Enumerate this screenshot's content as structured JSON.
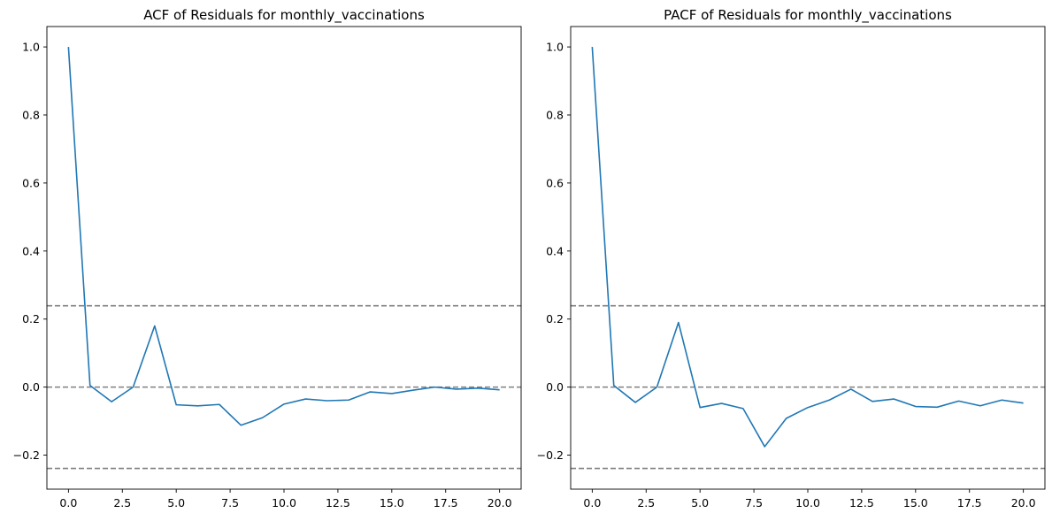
{
  "chart_data": [
    {
      "type": "line",
      "title": "ACF of Residuals for monthly_vaccinations",
      "xlabel": "",
      "ylabel": "",
      "xlim": [
        -1.0,
        21.0
      ],
      "ylim": [
        -0.3,
        1.06
      ],
      "xticks": [
        0.0,
        2.5,
        5.0,
        7.5,
        10.0,
        12.5,
        15.0,
        17.5,
        20.0
      ],
      "xtick_labels": [
        "0.0",
        "2.5",
        "5.0",
        "7.5",
        "10.0",
        "12.5",
        "15.0",
        "17.5",
        "20.0"
      ],
      "yticks": [
        -0.2,
        0.0,
        0.2,
        0.4,
        0.6,
        0.8,
        1.0
      ],
      "ytick_labels": [
        "−0.2",
        "0.0",
        "0.2",
        "0.4",
        "0.6",
        "0.8",
        "1.0"
      ],
      "grid": false,
      "x": [
        0,
        1,
        2,
        3,
        4,
        5,
        6,
        7,
        8,
        9,
        10,
        11,
        12,
        13,
        14,
        15,
        16,
        17,
        18,
        19,
        20
      ],
      "series": [
        {
          "color": "#1f77b4",
          "values": [
            1.0,
            0.005,
            -0.043,
            0.0,
            0.18,
            -0.052,
            -0.055,
            -0.051,
            -0.112,
            -0.09,
            -0.05,
            -0.035,
            -0.04,
            -0.038,
            -0.014,
            -0.019,
            -0.009,
            0.0,
            -0.006,
            -0.003,
            -0.008
          ]
        }
      ],
      "hlines": [
        {
          "y": 0.239,
          "color": "#808080",
          "style": "dashed"
        },
        {
          "y": 0.0,
          "color": "#808080",
          "style": "dashed"
        },
        {
          "y": -0.239,
          "color": "#808080",
          "style": "dashed"
        }
      ]
    },
    {
      "type": "line",
      "title": "PACF of Residuals for monthly_vaccinations",
      "xlabel": "",
      "ylabel": "",
      "xlim": [
        -1.0,
        21.0
      ],
      "ylim": [
        -0.3,
        1.06
      ],
      "xticks": [
        0.0,
        2.5,
        5.0,
        7.5,
        10.0,
        12.5,
        15.0,
        17.5,
        20.0
      ],
      "xtick_labels": [
        "0.0",
        "2.5",
        "5.0",
        "7.5",
        "10.0",
        "12.5",
        "15.0",
        "17.5",
        "20.0"
      ],
      "yticks": [
        -0.2,
        0.0,
        0.2,
        0.4,
        0.6,
        0.8,
        1.0
      ],
      "ytick_labels": [
        "−0.2",
        "0.0",
        "0.2",
        "0.4",
        "0.6",
        "0.8",
        "1.0"
      ],
      "grid": false,
      "x": [
        0,
        1,
        2,
        3,
        4,
        5,
        6,
        7,
        8,
        9,
        10,
        11,
        12,
        13,
        14,
        15,
        16,
        17,
        18,
        19,
        20
      ],
      "series": [
        {
          "color": "#1f77b4",
          "values": [
            1.0,
            0.005,
            -0.045,
            0.0,
            0.19,
            -0.06,
            -0.048,
            -0.063,
            -0.175,
            -0.092,
            -0.06,
            -0.038,
            -0.006,
            -0.042,
            -0.035,
            -0.057,
            -0.059,
            -0.041,
            -0.055,
            -0.038,
            -0.047
          ]
        }
      ],
      "hlines": [
        {
          "y": 0.239,
          "color": "#808080",
          "style": "dashed"
        },
        {
          "y": 0.0,
          "color": "#808080",
          "style": "dashed"
        },
        {
          "y": -0.239,
          "color": "#808080",
          "style": "dashed"
        }
      ]
    }
  ]
}
